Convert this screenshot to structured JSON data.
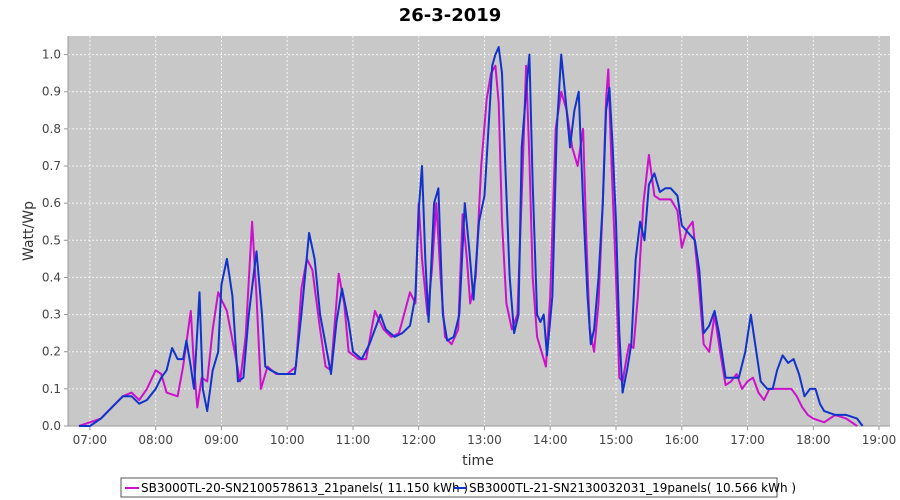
{
  "colors": {
    "plot_background": "#c8c8c8",
    "grid": "#f4f4f4",
    "axis": "#999999",
    "series_magenta": "#cc11cc",
    "series_blue": "#1133cc"
  },
  "chart_data": {
    "type": "line",
    "title": "26-3-2019",
    "xlabel": "time",
    "ylabel": "Watt/Wp",
    "xlim": [
      "06:40",
      "19:10"
    ],
    "ylim": [
      0,
      1.05
    ],
    "grid": true,
    "legend_position": "bottom",
    "x_tick_labels": [
      "07:00",
      "08:00",
      "09:00",
      "10:00",
      "11:00",
      "12:00",
      "13:00",
      "14:00",
      "15:00",
      "16:00",
      "17:00",
      "18:00",
      "19:00"
    ],
    "y_tick_labels": [
      "0.0",
      "0.1",
      "0.2",
      "0.3",
      "0.4",
      "0.5",
      "0.6",
      "0.7",
      "0.8",
      "0.9",
      "1.0"
    ],
    "series": [
      {
        "name": "SB3000TL-20-SN2100578613_21panels( 11.150 kWh )",
        "color": "#cc11cc",
        "points": [
          [
            "06:50",
            0.0
          ],
          [
            "07:00",
            0.01
          ],
          [
            "07:10",
            0.02
          ],
          [
            "07:20",
            0.05
          ],
          [
            "07:30",
            0.08
          ],
          [
            "07:38",
            0.09
          ],
          [
            "07:45",
            0.07
          ],
          [
            "07:52",
            0.1
          ],
          [
            "08:00",
            0.15
          ],
          [
            "08:05",
            0.14
          ],
          [
            "08:10",
            0.09
          ],
          [
            "08:20",
            0.08
          ],
          [
            "08:25",
            0.16
          ],
          [
            "08:32",
            0.31
          ],
          [
            "08:35",
            0.16
          ],
          [
            "08:38",
            0.05
          ],
          [
            "08:42",
            0.13
          ],
          [
            "08:47",
            0.12
          ],
          [
            "08:52",
            0.26
          ],
          [
            "08:57",
            0.36
          ],
          [
            "09:00",
            0.34
          ],
          [
            "09:05",
            0.31
          ],
          [
            "09:12",
            0.2
          ],
          [
            "09:17",
            0.12
          ],
          [
            "09:22",
            0.24
          ],
          [
            "09:28",
            0.55
          ],
          [
            "09:32",
            0.35
          ],
          [
            "09:36",
            0.1
          ],
          [
            "09:42",
            0.16
          ],
          [
            "09:50",
            0.14
          ],
          [
            "10:00",
            0.14
          ],
          [
            "10:08",
            0.16
          ],
          [
            "10:13",
            0.37
          ],
          [
            "10:18",
            0.45
          ],
          [
            "10:23",
            0.42
          ],
          [
            "10:30",
            0.26
          ],
          [
            "10:35",
            0.16
          ],
          [
            "10:40",
            0.15
          ],
          [
            "10:47",
            0.41
          ],
          [
            "10:52",
            0.33
          ],
          [
            "10:56",
            0.2
          ],
          [
            "11:05",
            0.18
          ],
          [
            "11:12",
            0.18
          ],
          [
            "11:20",
            0.31
          ],
          [
            "11:28",
            0.26
          ],
          [
            "11:35",
            0.24
          ],
          [
            "11:42",
            0.25
          ],
          [
            "11:52",
            0.36
          ],
          [
            "11:57",
            0.33
          ],
          [
            "12:00",
            0.6
          ],
          [
            "12:03",
            0.45
          ],
          [
            "12:08",
            0.3
          ],
          [
            "12:12",
            0.42
          ],
          [
            "12:16",
            0.6
          ],
          [
            "12:20",
            0.4
          ],
          [
            "12:24",
            0.24
          ],
          [
            "12:30",
            0.22
          ],
          [
            "12:36",
            0.26
          ],
          [
            "12:40",
            0.57
          ],
          [
            "12:44",
            0.45
          ],
          [
            "12:47",
            0.33
          ],
          [
            "12:52",
            0.4
          ],
          [
            "12:57",
            0.7
          ],
          [
            "13:02",
            0.88
          ],
          [
            "13:06",
            0.95
          ],
          [
            "13:10",
            0.97
          ],
          [
            "13:13",
            0.87
          ],
          [
            "13:16",
            0.55
          ],
          [
            "13:20",
            0.33
          ],
          [
            "13:25",
            0.26
          ],
          [
            "13:30",
            0.3
          ],
          [
            "13:35",
            0.7
          ],
          [
            "13:38",
            0.97
          ],
          [
            "13:41",
            0.72
          ],
          [
            "13:44",
            0.4
          ],
          [
            "13:48",
            0.24
          ],
          [
            "13:52",
            0.2
          ],
          [
            "13:56",
            0.16
          ],
          [
            "14:00",
            0.35
          ],
          [
            "14:05",
            0.8
          ],
          [
            "14:10",
            0.9
          ],
          [
            "14:15",
            0.85
          ],
          [
            "14:20",
            0.75
          ],
          [
            "14:25",
            0.7
          ],
          [
            "14:30",
            0.8
          ],
          [
            "14:33",
            0.5
          ],
          [
            "14:36",
            0.26
          ],
          [
            "14:40",
            0.2
          ],
          [
            "14:44",
            0.33
          ],
          [
            "14:48",
            0.6
          ],
          [
            "14:51",
            0.88
          ],
          [
            "14:53",
            0.96
          ],
          [
            "14:56",
            0.7
          ],
          [
            "15:00",
            0.4
          ],
          [
            "15:03",
            0.13
          ],
          [
            "15:06",
            0.12
          ],
          [
            "15:10",
            0.19
          ],
          [
            "15:12",
            0.22
          ],
          [
            "15:16",
            0.21
          ],
          [
            "15:20",
            0.35
          ],
          [
            "15:25",
            0.6
          ],
          [
            "15:30",
            0.73
          ],
          [
            "15:35",
            0.62
          ],
          [
            "15:40",
            0.61
          ],
          [
            "15:45",
            0.61
          ],
          [
            "15:50",
            0.61
          ],
          [
            "15:56",
            0.58
          ],
          [
            "16:00",
            0.48
          ],
          [
            "16:05",
            0.53
          ],
          [
            "16:10",
            0.55
          ],
          [
            "16:15",
            0.4
          ],
          [
            "16:20",
            0.22
          ],
          [
            "16:25",
            0.2
          ],
          [
            "16:30",
            0.3
          ],
          [
            "16:35",
            0.2
          ],
          [
            "16:40",
            0.11
          ],
          [
            "16:45",
            0.12
          ],
          [
            "16:50",
            0.14
          ],
          [
            "16:55",
            0.1
          ],
          [
            "17:00",
            0.12
          ],
          [
            "17:05",
            0.13
          ],
          [
            "17:10",
            0.09
          ],
          [
            "17:15",
            0.07
          ],
          [
            "17:20",
            0.1
          ],
          [
            "17:30",
            0.1
          ],
          [
            "17:40",
            0.1
          ],
          [
            "17:45",
            0.08
          ],
          [
            "17:50",
            0.05
          ],
          [
            "17:55",
            0.03
          ],
          [
            "18:00",
            0.02
          ],
          [
            "18:10",
            0.01
          ],
          [
            "18:20",
            0.03
          ],
          [
            "18:30",
            0.02
          ],
          [
            "18:40",
            0.0
          ]
        ]
      },
      {
        "name": "SB3000TL-21-SN2130032031_19panels( 10.566 kWh )",
        "color": "#1133cc",
        "points": [
          [
            "06:50",
            0.0
          ],
          [
            "07:00",
            0.0
          ],
          [
            "07:10",
            0.02
          ],
          [
            "07:20",
            0.05
          ],
          [
            "07:30",
            0.08
          ],
          [
            "07:38",
            0.08
          ],
          [
            "07:45",
            0.06
          ],
          [
            "07:52",
            0.07
          ],
          [
            "08:00",
            0.1
          ],
          [
            "08:05",
            0.13
          ],
          [
            "08:10",
            0.15
          ],
          [
            "08:15",
            0.21
          ],
          [
            "08:20",
            0.18
          ],
          [
            "08:25",
            0.18
          ],
          [
            "08:28",
            0.23
          ],
          [
            "08:32",
            0.16
          ],
          [
            "08:35",
            0.1
          ],
          [
            "08:40",
            0.36
          ],
          [
            "08:43",
            0.1
          ],
          [
            "08:47",
            0.04
          ],
          [
            "08:52",
            0.15
          ],
          [
            "08:57",
            0.2
          ],
          [
            "09:00",
            0.38
          ],
          [
            "09:05",
            0.45
          ],
          [
            "09:10",
            0.35
          ],
          [
            "09:15",
            0.12
          ],
          [
            "09:20",
            0.13
          ],
          [
            "09:25",
            0.3
          ],
          [
            "09:32",
            0.47
          ],
          [
            "09:37",
            0.3
          ],
          [
            "09:40",
            0.16
          ],
          [
            "09:45",
            0.15
          ],
          [
            "09:52",
            0.14
          ],
          [
            "10:00",
            0.14
          ],
          [
            "10:07",
            0.14
          ],
          [
            "10:13",
            0.3
          ],
          [
            "10:20",
            0.52
          ],
          [
            "10:25",
            0.45
          ],
          [
            "10:30",
            0.3
          ],
          [
            "10:35",
            0.22
          ],
          [
            "10:40",
            0.14
          ],
          [
            "10:45",
            0.28
          ],
          [
            "10:50",
            0.37
          ],
          [
            "10:56",
            0.28
          ],
          [
            "11:00",
            0.2
          ],
          [
            "11:08",
            0.18
          ],
          [
            "11:15",
            0.22
          ],
          [
            "11:25",
            0.3
          ],
          [
            "11:30",
            0.26
          ],
          [
            "11:38",
            0.24
          ],
          [
            "11:45",
            0.25
          ],
          [
            "11:52",
            0.27
          ],
          [
            "11:57",
            0.35
          ],
          [
            "12:00",
            0.58
          ],
          [
            "12:03",
            0.7
          ],
          [
            "12:06",
            0.45
          ],
          [
            "12:09",
            0.28
          ],
          [
            "12:14",
            0.6
          ],
          [
            "12:18",
            0.64
          ],
          [
            "12:22",
            0.3
          ],
          [
            "12:26",
            0.23
          ],
          [
            "12:32",
            0.24
          ],
          [
            "12:37",
            0.3
          ],
          [
            "12:42",
            0.6
          ],
          [
            "12:46",
            0.48
          ],
          [
            "12:50",
            0.34
          ],
          [
            "12:55",
            0.55
          ],
          [
            "13:00",
            0.62
          ],
          [
            "13:04",
            0.82
          ],
          [
            "13:07",
            0.97
          ],
          [
            "13:10",
            1.0
          ],
          [
            "13:13",
            1.02
          ],
          [
            "13:16",
            0.95
          ],
          [
            "13:19",
            0.7
          ],
          [
            "13:23",
            0.4
          ],
          [
            "13:27",
            0.25
          ],
          [
            "13:31",
            0.3
          ],
          [
            "13:34",
            0.75
          ],
          [
            "13:38",
            0.9
          ],
          [
            "13:41",
            1.0
          ],
          [
            "13:44",
            0.65
          ],
          [
            "13:48",
            0.3
          ],
          [
            "13:51",
            0.28
          ],
          [
            "13:54",
            0.3
          ],
          [
            "13:57",
            0.19
          ],
          [
            "14:02",
            0.35
          ],
          [
            "14:06",
            0.8
          ],
          [
            "14:10",
            1.0
          ],
          [
            "14:14",
            0.88
          ],
          [
            "14:18",
            0.75
          ],
          [
            "14:22",
            0.85
          ],
          [
            "14:26",
            0.9
          ],
          [
            "14:30",
            0.6
          ],
          [
            "14:34",
            0.35
          ],
          [
            "14:37",
            0.22
          ],
          [
            "14:40",
            0.26
          ],
          [
            "14:44",
            0.4
          ],
          [
            "14:48",
            0.6
          ],
          [
            "14:51",
            0.85
          ],
          [
            "14:54",
            0.91
          ],
          [
            "14:57",
            0.75
          ],
          [
            "15:00",
            0.55
          ],
          [
            "15:03",
            0.25
          ],
          [
            "15:06",
            0.09
          ],
          [
            "15:10",
            0.15
          ],
          [
            "15:14",
            0.22
          ],
          [
            "15:18",
            0.45
          ],
          [
            "15:22",
            0.55
          ],
          [
            "15:26",
            0.5
          ],
          [
            "15:30",
            0.65
          ],
          [
            "15:35",
            0.68
          ],
          [
            "15:40",
            0.63
          ],
          [
            "15:45",
            0.64
          ],
          [
            "15:50",
            0.64
          ],
          [
            "15:56",
            0.62
          ],
          [
            "16:00",
            0.54
          ],
          [
            "16:06",
            0.52
          ],
          [
            "16:12",
            0.5
          ],
          [
            "16:16",
            0.42
          ],
          [
            "16:20",
            0.25
          ],
          [
            "16:25",
            0.27
          ],
          [
            "16:30",
            0.31
          ],
          [
            "16:34",
            0.25
          ],
          [
            "16:40",
            0.13
          ],
          [
            "16:45",
            0.13
          ],
          [
            "16:52",
            0.13
          ],
          [
            "16:58",
            0.2
          ],
          [
            "17:03",
            0.3
          ],
          [
            "17:08",
            0.2
          ],
          [
            "17:12",
            0.12
          ],
          [
            "17:18",
            0.1
          ],
          [
            "17:23",
            0.1
          ],
          [
            "17:27",
            0.15
          ],
          [
            "17:32",
            0.19
          ],
          [
            "17:37",
            0.17
          ],
          [
            "17:42",
            0.18
          ],
          [
            "17:47",
            0.14
          ],
          [
            "17:52",
            0.08
          ],
          [
            "17:57",
            0.1
          ],
          [
            "18:02",
            0.1
          ],
          [
            "18:06",
            0.06
          ],
          [
            "18:10",
            0.04
          ],
          [
            "18:20",
            0.03
          ],
          [
            "18:30",
            0.03
          ],
          [
            "18:40",
            0.02
          ],
          [
            "18:45",
            0.0
          ]
        ]
      }
    ]
  }
}
